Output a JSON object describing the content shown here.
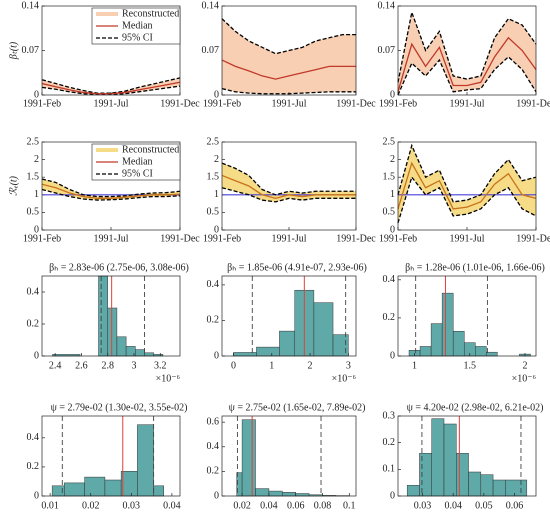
{
  "chart_data": [
    {
      "type": "line",
      "ylabel": "βₜ(t)",
      "categories": [
        "1991-Feb",
        null,
        null,
        null,
        null,
        "1991-Jul",
        null,
        null,
        null,
        null,
        "1991-Dec"
      ],
      "median": [
        0.018,
        0.013,
        0.008,
        0.004,
        0.002,
        0.002,
        0.004,
        0.008,
        0.012,
        0.016,
        0.02
      ],
      "ci_lower": [
        0.012,
        0.009,
        0.005,
        0.002,
        0.001,
        0.001,
        0.002,
        0.005,
        0.008,
        0.011,
        0.014
      ],
      "ci_upper": [
        0.024,
        0.018,
        0.012,
        0.007,
        0.003,
        0.003,
        0.006,
        0.012,
        0.017,
        0.022,
        0.027
      ],
      "band_color": "#f8cfb2",
      "median_color": "#c0392b",
      "ci_color": "#000000",
      "ylim": [
        0,
        0.14
      ],
      "yticks": [
        0,
        0.07,
        0.14
      ],
      "legend": [
        {
          "name": "Reconstructed",
          "color": "#f8cfb2"
        },
        {
          "name": "Median",
          "color": "#c0392b"
        },
        {
          "name": "95% CI",
          "color": "#000000"
        }
      ]
    },
    {
      "type": "line",
      "categories": [
        "1991-Feb",
        null,
        null,
        null,
        null,
        "1991-Jul",
        null,
        null,
        null,
        null,
        "1991-Dec"
      ],
      "median": [
        0.055,
        0.045,
        0.038,
        0.03,
        0.025,
        0.03,
        0.035,
        0.04,
        0.045,
        0.045,
        0.045
      ],
      "ci_lower": [
        0.01,
        0.005,
        0.003,
        0.002,
        0.002,
        0.002,
        0.003,
        0.004,
        0.005,
        0.005,
        0.005
      ],
      "ci_upper": [
        0.12,
        0.1,
        0.085,
        0.075,
        0.065,
        0.07,
        0.075,
        0.085,
        0.09,
        0.095,
        0.095
      ],
      "band_color": "#f8cfb2",
      "median_color": "#c0392b",
      "ci_color": "#000000",
      "ylim": [
        0,
        0.14
      ],
      "yticks": [
        0,
        0.07,
        0.14
      ]
    },
    {
      "type": "line",
      "categories": [
        "1991-Feb",
        null,
        null,
        null,
        null,
        "1991-Jul",
        null,
        null,
        null,
        null,
        "1991-Dec"
      ],
      "median": [
        0.005,
        0.08,
        0.045,
        0.075,
        0.015,
        0.015,
        0.02,
        0.06,
        0.09,
        0.07,
        0.04
      ],
      "ci_lower": [
        0,
        0.05,
        0.03,
        0.055,
        0.005,
        0.008,
        0.01,
        0.04,
        0.06,
        0.04,
        0.005
      ],
      "ci_upper": [
        0.02,
        0.13,
        0.07,
        0.1,
        0.03,
        0.025,
        0.03,
        0.09,
        0.12,
        0.11,
        0.08
      ],
      "band_color": "#f8cfb2",
      "median_color": "#c0392b",
      "ci_color": "#000000",
      "ylim": [
        0,
        0.14
      ],
      "yticks": [
        0,
        0.07,
        0.14
      ]
    },
    {
      "type": "line",
      "ylabel": "ℛₑ(t)",
      "categories": [
        "1991-Feb",
        null,
        null,
        null,
        null,
        "1991-Jul",
        null,
        null,
        null,
        null,
        "1991-Dec"
      ],
      "median": [
        1.3,
        1.2,
        1.05,
        0.95,
        0.9,
        0.9,
        0.93,
        0.97,
        1,
        1,
        1.02
      ],
      "ci_lower": [
        1.15,
        1.05,
        0.95,
        0.88,
        0.85,
        0.86,
        0.88,
        0.92,
        0.95,
        0.95,
        0.97
      ],
      "ci_upper": [
        1.45,
        1.35,
        1.15,
        1.0,
        0.95,
        0.95,
        0.97,
        1.02,
        1.05,
        1.06,
        1.1
      ],
      "band_color": "#f6dc86",
      "median_color": "#c9721c",
      "ci_color": "#000000",
      "hline": 1,
      "hline_color": "#4a3fd6",
      "ylim": [
        0,
        2.5
      ],
      "yticks": [
        0,
        0.5,
        1,
        1.5,
        2,
        2.5
      ],
      "legend": [
        {
          "name": "Reconstructed",
          "color": "#f6dc86"
        },
        {
          "name": "Median",
          "color": "#c0392b"
        },
        {
          "name": "95% CI",
          "color": "#000000"
        }
      ]
    },
    {
      "type": "line",
      "categories": [
        "1991-Feb",
        null,
        null,
        null,
        null,
        "1991-Jul",
        null,
        null,
        null,
        null,
        "1991-Dec"
      ],
      "median": [
        1.55,
        1.4,
        1.25,
        1.0,
        0.9,
        1.0,
        0.95,
        1.0,
        1.0,
        1.0,
        1.0
      ],
      "ci_lower": [
        1.2,
        1.1,
        1.0,
        0.85,
        0.8,
        0.9,
        0.85,
        0.9,
        0.9,
        0.9,
        0.9
      ],
      "ci_upper": [
        1.9,
        1.75,
        1.55,
        1.15,
        1.0,
        1.1,
        1.05,
        1.1,
        1.1,
        1.1,
        1.1
      ],
      "band_color": "#f6dc86",
      "median_color": "#c9721c",
      "ci_color": "#000000",
      "hline": 1,
      "hline_color": "#4a3fd6",
      "ylim": [
        0,
        2.5
      ],
      "yticks": [
        0,
        0.5,
        1,
        1.5,
        2,
        2.5
      ]
    },
    {
      "type": "line",
      "categories": [
        "1991-Feb",
        null,
        null,
        null,
        null,
        "1991-Jul",
        null,
        null,
        null,
        null,
        "1991-Dec"
      ],
      "median": [
        0.6,
        1.9,
        1.2,
        1.4,
        0.6,
        0.65,
        0.8,
        1.3,
        1.6,
        1.0,
        0.9
      ],
      "ci_lower": [
        0.2,
        1.5,
        1.0,
        1.2,
        0.4,
        0.45,
        0.6,
        1.0,
        1.2,
        0.6,
        0.4
      ],
      "ci_upper": [
        1.0,
        2.4,
        1.5,
        1.7,
        0.8,
        0.85,
        1.0,
        1.6,
        2.0,
        1.4,
        1.5
      ],
      "band_color": "#f6dc86",
      "median_color": "#c9721c",
      "ci_color": "#000000",
      "hline": 1,
      "hline_color": "#4a3fd6",
      "ylim": [
        0,
        2.5
      ],
      "yticks": [
        0,
        0.5,
        1,
        1.5,
        2,
        2.5
      ]
    },
    {
      "type": "histogram",
      "title": "βₕ = 2.83e-06 (2.75e-06, 3.08e-06)",
      "x_multiplier": "×10⁻⁶",
      "bins": [
        2.38,
        2.59,
        2.66,
        2.73,
        2.8,
        2.87,
        2.94,
        3.01,
        3.08,
        3.15,
        3.22
      ],
      "values": [
        0.01,
        0,
        0,
        0.5,
        0.3,
        0.12,
        0.06,
        0.04,
        0.02,
        0.01
      ],
      "median": 2.83,
      "ci": [
        2.75,
        3.08
      ],
      "color": "#5fa9a8",
      "xlim": [
        2.3,
        3.35
      ],
      "xticks": [
        2.4,
        2.6,
        2.8,
        3,
        3.2
      ],
      "ylim": [
        0,
        0.5
      ],
      "yticks": [
        0,
        0.2,
        0.4
      ]
    },
    {
      "type": "histogram",
      "title": "βₕ = 1.85e-06 (4.91e-07, 2.93e-06)",
      "x_multiplier": "×10⁻⁶",
      "bins": [
        0,
        0.6,
        1.2,
        1.6,
        2.1,
        2.6,
        3.0
      ],
      "values": [
        0.02,
        0.05,
        0.14,
        0.37,
        0.3,
        0.12
      ],
      "median": 1.85,
      "ci": [
        0.491,
        2.93
      ],
      "color": "#5fa9a8",
      "xlim": [
        -0.3,
        3.2
      ],
      "xticks": [
        0,
        1,
        2,
        3
      ],
      "ylim": [
        0,
        0.45
      ],
      "yticks": [
        0,
        0.2,
        0.4
      ]
    },
    {
      "type": "histogram",
      "title": "βₕ = 1.28e-06 (1.01e-06, 1.66e-06)",
      "x_multiplier": "×10⁻⁶",
      "bins": [
        0.95,
        1.05,
        1.15,
        1.25,
        1.35,
        1.45,
        1.55,
        1.65,
        1.75,
        1.85,
        1.95,
        2.05
      ],
      "values": [
        0.03,
        0.05,
        0.17,
        0.33,
        0.13,
        0.07,
        0.05,
        0.02,
        0,
        0,
        0.01
      ],
      "median": 1.28,
      "ci": [
        1.01,
        1.66
      ],
      "color": "#5fa9a8",
      "xlim": [
        0.85,
        2.1
      ],
      "xticks": [
        1,
        1.5,
        2
      ],
      "ylim": [
        0,
        0.42
      ],
      "yticks": [
        0,
        0.2,
        0.4
      ]
    },
    {
      "type": "histogram",
      "title": "ψ = 2.79e-02 (1.30e-02, 3.55e-02)",
      "bins": [
        0.0105,
        0.0135,
        0.0185,
        0.0235,
        0.0275,
        0.0315,
        0.0355,
        0.038
      ],
      "values": [
        0.07,
        0.09,
        0.13,
        0.11,
        0.17,
        0.49,
        0.07
      ],
      "median": 0.0279,
      "ci": [
        0.013,
        0.0355
      ],
      "color": "#5fa9a8",
      "xlim": [
        0.008,
        0.042
      ],
      "xticks": [
        0.01,
        0.02,
        0.03,
        0.04
      ],
      "ylim": [
        0,
        0.55
      ],
      "yticks": [
        0,
        0.2,
        0.4
      ]
    },
    {
      "type": "histogram",
      "title": "ψ = 2.75e-02 (1.65e-02, 7.89e-02)",
      "bins": [
        0.016,
        0.02,
        0.03,
        0.04,
        0.05,
        0.06,
        0.07,
        0.08,
        0.09,
        0.1
      ],
      "values": [
        0.19,
        0.62,
        0.06,
        0.04,
        0.03,
        0.02,
        0.01,
        0.005,
        0.003
      ],
      "median": 0.0275,
      "ci": [
        0.0165,
        0.0789
      ],
      "color": "#5fa9a8",
      "xlim": [
        0.005,
        0.105
      ],
      "xticks": [
        0.02,
        0.04,
        0.06,
        0.08,
        0.1
      ],
      "ylim": [
        0,
        0.65
      ],
      "yticks": [
        0,
        0.2,
        0.4,
        0.6
      ]
    },
    {
      "type": "histogram",
      "title": "ψ = 4.20e-02 (2.98e-02, 6.21e-02)",
      "bins": [
        0.025,
        0.029,
        0.033,
        0.037,
        0.041,
        0.045,
        0.049,
        0.053,
        0.057,
        0.064
      ],
      "values": [
        0.04,
        0.16,
        0.29,
        0.27,
        0.16,
        0.09,
        0.08,
        0.06,
        0.06
      ],
      "median": 0.042,
      "ci": [
        0.0298,
        0.0621
      ],
      "color": "#5fa9a8",
      "xlim": [
        0.022,
        0.067
      ],
      "xticks": [
        0.03,
        0.04,
        0.05,
        0.06
      ],
      "ylim": [
        0,
        0.3
      ],
      "yticks": [
        0,
        0.1,
        0.2,
        0.3
      ]
    }
  ]
}
